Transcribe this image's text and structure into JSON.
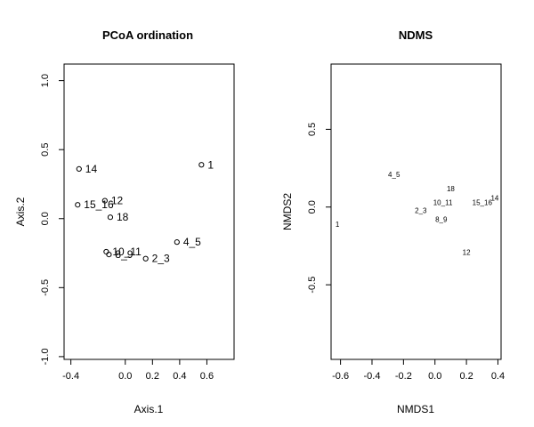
{
  "chart_data": [
    {
      "type": "scatter",
      "title": "PCoA ordination",
      "xlabel": "Axis.1",
      "ylabel": "Axis.2",
      "xlim": [
        -0.45,
        0.8
      ],
      "ylim": [
        -1.02,
        1.12
      ],
      "xticks": [
        "-0.4",
        "0.0",
        "0.2",
        "0.4",
        "0.6"
      ],
      "xtick_values": [
        -0.4,
        0.0,
        0.2,
        0.4,
        0.6
      ],
      "yticks": [
        "-1.0",
        "-0.5",
        "0.0",
        "0.5",
        "1.0"
      ],
      "ytick_values": [
        -1.0,
        -0.5,
        0.0,
        0.5,
        1.0
      ],
      "marker": "open-circle",
      "points": [
        {
          "label": "1",
          "x": 0.56,
          "y": 0.39
        },
        {
          "label": "14",
          "x": -0.34,
          "y": 0.36
        },
        {
          "label": "12",
          "x": -0.15,
          "y": 0.13
        },
        {
          "label": "15_16",
          "x": -0.35,
          "y": 0.1
        },
        {
          "label": "18",
          "x": -0.11,
          "y": 0.01
        },
        {
          "label": "4_5",
          "x": 0.38,
          "y": -0.17
        },
        {
          "label": "10_11",
          "x": -0.14,
          "y": -0.24
        },
        {
          "label": "8_9",
          "x": -0.12,
          "y": -0.26
        },
        {
          "label": "2_3",
          "x": 0.15,
          "y": -0.29
        }
      ]
    },
    {
      "type": "scatter",
      "title": "NDMS",
      "xlabel": "NMDS1",
      "ylabel": "NMDS2",
      "xlim": [
        -0.66,
        0.42
      ],
      "ylim": [
        -0.98,
        0.92
      ],
      "xticks": [
        "-0.6",
        "-0.4",
        "-0.2",
        "0.0",
        "0.2",
        "0.4"
      ],
      "xtick_values": [
        -0.6,
        -0.4,
        -0.2,
        0.0,
        0.2,
        0.4
      ],
      "yticks": [
        "-0.5",
        "0.0",
        "0.5"
      ],
      "ytick_values": [
        -0.5,
        0.0,
        0.5
      ],
      "marker": "text-only",
      "points": [
        {
          "label": "1",
          "x": -0.62,
          "y": -0.11
        },
        {
          "label": "4_5",
          "x": -0.26,
          "y": 0.21
        },
        {
          "label": "18",
          "x": 0.1,
          "y": 0.12
        },
        {
          "label": "10_11",
          "x": 0.05,
          "y": 0.03
        },
        {
          "label": "15_16",
          "x": 0.3,
          "y": 0.03
        },
        {
          "label": "14",
          "x": 0.38,
          "y": 0.06
        },
        {
          "label": "2_3",
          "x": -0.09,
          "y": -0.02
        },
        {
          "label": "8_9",
          "x": 0.04,
          "y": -0.08
        },
        {
          "label": "12",
          "x": 0.2,
          "y": -0.29
        }
      ]
    }
  ]
}
